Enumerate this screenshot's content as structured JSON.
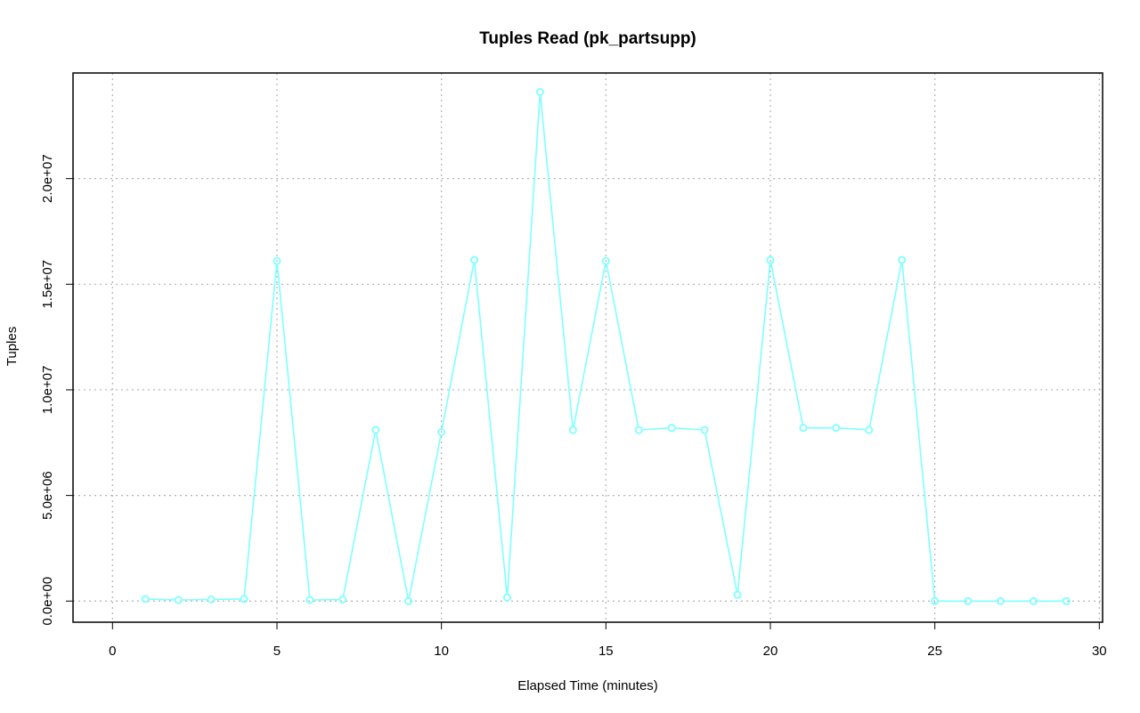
{
  "chart_data": {
    "type": "line",
    "title": "Tuples Read (pk_partsupp)",
    "xlabel": "Elapsed Time (minutes)",
    "ylabel": "Tuples",
    "xlim": [
      -1.2,
      30.1
    ],
    "ylim": [
      -1000000,
      25000000
    ],
    "x_ticks": [
      0,
      5,
      10,
      15,
      20,
      25,
      30
    ],
    "x_tick_labels": [
      "0",
      "5",
      "10",
      "15",
      "20",
      "25",
      "30"
    ],
    "y_ticks": [
      0,
      5000000,
      10000000,
      15000000,
      20000000
    ],
    "y_tick_labels": [
      "0.0e+00",
      "5.0e+06",
      "1.0e+07",
      "1.5e+07",
      "2.0e+07"
    ],
    "grid": true,
    "series": [
      {
        "color": "#7fffff",
        "marker": "open-circle",
        "x": [
          1,
          2,
          3,
          4,
          5,
          6,
          7,
          8,
          9,
          10,
          11,
          12,
          13,
          14,
          15,
          16,
          17,
          18,
          19,
          20,
          21,
          22,
          23,
          24,
          25,
          26,
          27,
          28,
          29
        ],
        "values": [
          100000,
          50000,
          80000,
          100000,
          16100000,
          50000,
          80000,
          8100000,
          0,
          8000000,
          16150000,
          170000,
          24100000,
          8100000,
          16100000,
          8100000,
          8200000,
          8100000,
          300000,
          16150000,
          8200000,
          8200000,
          8100000,
          16150000,
          0,
          0,
          0,
          0,
          0
        ]
      }
    ]
  }
}
